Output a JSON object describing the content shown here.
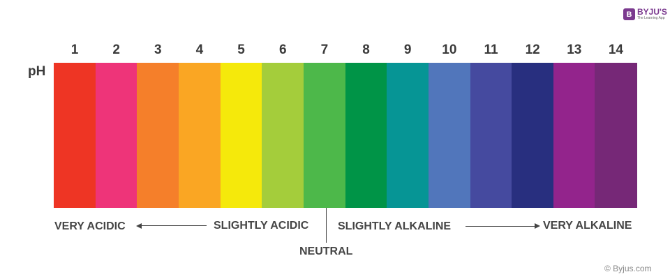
{
  "logo": {
    "brand": "BYJU'S",
    "tagline": "The Learning App"
  },
  "scale_label": "pH",
  "scale": [
    {
      "ph": "1",
      "color": "#ee3524"
    },
    {
      "ph": "2",
      "color": "#ee3479"
    },
    {
      "ph": "3",
      "color": "#f57f2a"
    },
    {
      "ph": "4",
      "color": "#faa623"
    },
    {
      "ph": "5",
      "color": "#f5e90b"
    },
    {
      "ph": "6",
      "color": "#a4cd3b"
    },
    {
      "ph": "7",
      "color": "#4db84a"
    },
    {
      "ph": "8",
      "color": "#009447"
    },
    {
      "ph": "9",
      "color": "#069595"
    },
    {
      "ph": "10",
      "color": "#5176bb"
    },
    {
      "ph": "11",
      "color": "#454a9f"
    },
    {
      "ph": "12",
      "color": "#282f7f"
    },
    {
      "ph": "13",
      "color": "#93248c"
    },
    {
      "ph": "14",
      "color": "#762877"
    }
  ],
  "labels": {
    "very_acidic": "VERY ACIDIC",
    "slightly_acidic": "SLIGHTLY ACIDIC",
    "neutral": "NEUTRAL",
    "slightly_alkaline": "SLIGHTLY ALKALINE",
    "very_alkaline": "VERY ALKALINE"
  },
  "copyright": "© Byjus.com"
}
